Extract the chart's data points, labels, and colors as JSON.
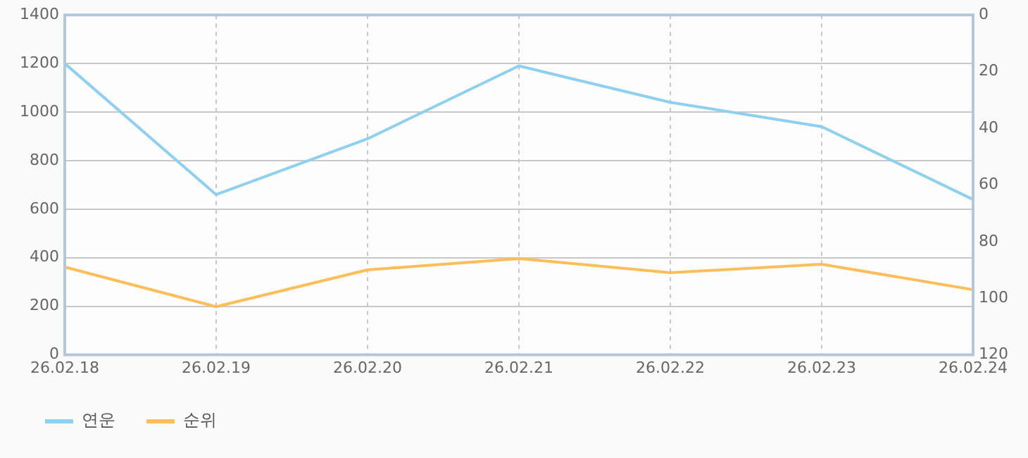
{
  "chart_data": {
    "type": "line",
    "categories": [
      "26.02.18",
      "26.02.19",
      "26.02.20",
      "26.02.21",
      "26.02.22",
      "26.02.23",
      "26.02.24"
    ],
    "series": [
      {
        "name": "연운",
        "color": "#8fd0f0",
        "values": [
          1200,
          660,
          890,
          1190,
          1040,
          940,
          640
        ]
      },
      {
        "name": "순위",
        "color": "#ffbe5a",
        "axis": "y2",
        "values": [
          89,
          103,
          90,
          86,
          91,
          88,
          97
        ]
      }
    ],
    "ylim": [
      0,
      1400
    ],
    "yticks": [
      0,
      200,
      400,
      600,
      800,
      1000,
      1200,
      1400
    ],
    "y2lim": [
      120,
      0
    ],
    "y2ticks": [
      0,
      20,
      40,
      60,
      80,
      100,
      120
    ],
    "grid": true,
    "legend": "bottom left",
    "marker": "none",
    "line_style": "solid"
  }
}
